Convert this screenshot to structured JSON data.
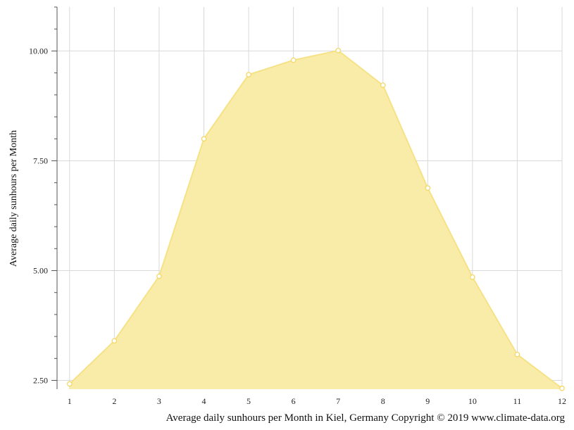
{
  "chart_data": {
    "type": "area",
    "x": [
      1,
      2,
      3,
      4,
      5,
      6,
      7,
      8,
      9,
      10,
      11,
      12
    ],
    "values": [
      2.42,
      3.4,
      4.87,
      8.0,
      9.46,
      9.79,
      10.01,
      9.22,
      6.88,
      4.85,
      3.09,
      2.32
    ],
    "x_tick_labels": [
      "1",
      "2",
      "3",
      "4",
      "5",
      "6",
      "7",
      "8",
      "9",
      "10",
      "11",
      "12"
    ],
    "y_tick_labels": [
      "10.00",
      "7.50",
      "5.00",
      "2.50"
    ],
    "y_ticks": [
      10,
      7.5,
      5,
      2.5
    ],
    "ylim": [
      2.3,
      11.0
    ],
    "xlim": [
      0.72,
      12
    ],
    "ylabel": "Average daily sunhours per Month",
    "caption": "Average daily sunhours per Month in Kiel, Germany Copyright © 2019 www.climate-data.org",
    "grid": true,
    "legend": "none",
    "fill_color": "#f9eca9",
    "line_color": "#f6e286",
    "marker_fill": "#ffffff",
    "marker_stroke": "#f3d866",
    "grid_color": "#d9d9d9",
    "axis_color": "#555555"
  }
}
